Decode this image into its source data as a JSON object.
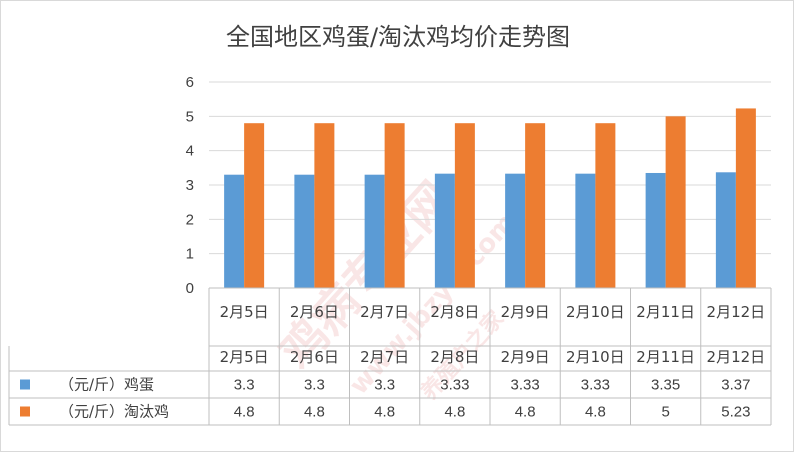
{
  "chart_data": {
    "type": "bar",
    "title": "全国地区鸡蛋/淘汰鸡均价走势图",
    "categories": [
      "2月5日",
      "2月6日",
      "2月7日",
      "2月8日",
      "2月9日",
      "2月10日",
      "2月11日",
      "2月12日"
    ],
    "series": [
      {
        "name": "（元/斤）鸡蛋",
        "color": "#5b9bd5",
        "values": [
          3.3,
          3.3,
          3.3,
          3.33,
          3.33,
          3.33,
          3.35,
          3.37
        ],
        "labels": [
          "3.3",
          "3.3",
          "3.3",
          "3.33",
          "3.33",
          "3.33",
          "3.35",
          "3.37"
        ]
      },
      {
        "name": "（元/斤）淘汰鸡",
        "color": "#ed7d31",
        "values": [
          4.8,
          4.8,
          4.8,
          4.8,
          4.8,
          4.8,
          5,
          5.23
        ],
        "labels": [
          "4.8",
          "4.8",
          "4.8",
          "4.8",
          "4.8",
          "4.8",
          "5",
          "5.23"
        ]
      }
    ],
    "ylim": [
      0,
      6
    ],
    "yticks": [
      "0",
      "1",
      "2",
      "3",
      "4",
      "5",
      "6"
    ],
    "grid": true,
    "legend": "data-table"
  },
  "watermark": {
    "line1": "鸡病专业网",
    "line2": "www.jbzyw.com",
    "line3": "养殖户之家"
  }
}
